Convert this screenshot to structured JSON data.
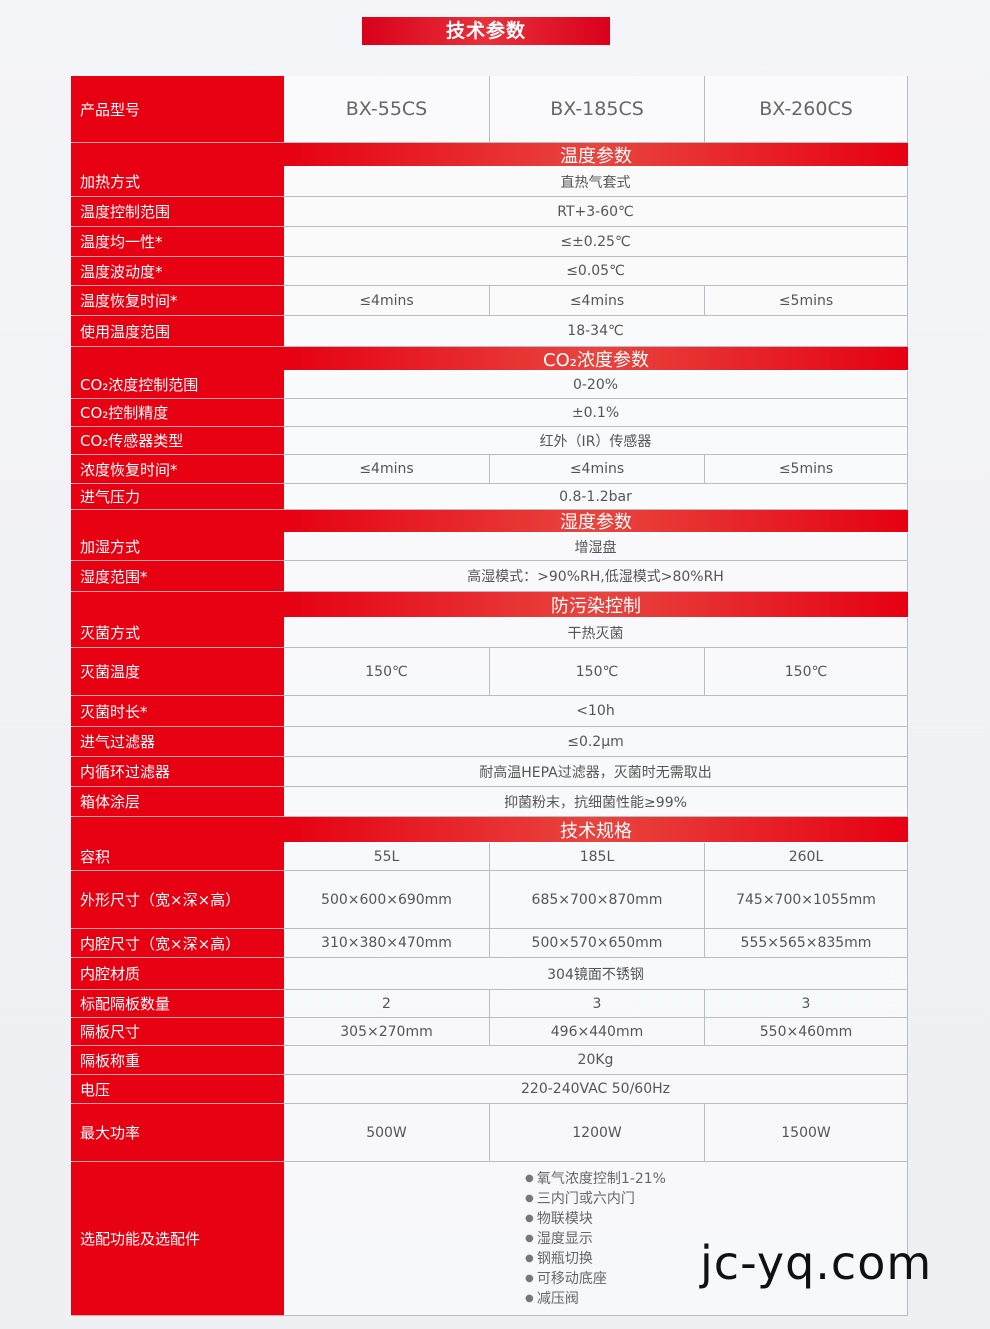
{
  "title": "技术参数",
  "header": {
    "label": "产品型号",
    "models": [
      "BX-55CS",
      "BX-185CS",
      "BX-260CS"
    ]
  },
  "rows": [
    {
      "section": "温度参数"
    },
    {
      "label": "加热方式",
      "values": [
        "直热气套式"
      ]
    },
    {
      "label": "温度控制范围",
      "values": [
        "RT+3-60℃"
      ]
    },
    {
      "label": "温度均一性*",
      "values": [
        "≤±0.25℃"
      ]
    },
    {
      "label": "温度波动度*",
      "values": [
        "≤0.05℃"
      ]
    },
    {
      "label": "温度恢复时间*",
      "values": [
        "≤4mins",
        "≤4mins",
        "≤5mins"
      ]
    },
    {
      "label": "使用温度范围",
      "values": [
        "18-34℃"
      ]
    },
    {
      "section": "CO₂浓度参数"
    },
    {
      "label": "CO₂浓度控制范围",
      "values": [
        "0-20%"
      ]
    },
    {
      "label": "CO₂控制精度",
      "values": [
        "±0.1%"
      ]
    },
    {
      "label": "CO₂传感器类型",
      "values": [
        "红外（IR）传感器"
      ]
    },
    {
      "label": "浓度恢复时间*",
      "values": [
        "≤4mins",
        "≤4mins",
        "≤5mins"
      ]
    },
    {
      "label": "进气压力",
      "values": [
        "0.8-1.2bar"
      ]
    },
    {
      "section": "湿度参数"
    },
    {
      "label": "加湿方式",
      "values": [
        "增湿盘"
      ]
    },
    {
      "label": "湿度范围*",
      "values": [
        "高湿模式：>90%RH,低湿模式>80%RH"
      ]
    },
    {
      "section": "防污染控制"
    },
    {
      "label": "灭菌方式",
      "values": [
        "干热灭菌"
      ]
    },
    {
      "label": "灭菌温度",
      "values": [
        "150℃",
        "150℃",
        "150℃"
      ]
    },
    {
      "label": "灭菌时长*",
      "values": [
        "<10h"
      ]
    },
    {
      "label": "进气过滤器",
      "values": [
        "≤0.2μm"
      ]
    },
    {
      "label": "内循环过滤器",
      "values": [
        "耐高温HEPA过滤器，灭菌时无需取出"
      ]
    },
    {
      "label": "箱体涂层",
      "values": [
        "抑菌粉末，抗细菌性能≥99%"
      ]
    },
    {
      "section": "技术规格"
    },
    {
      "label": "容积",
      "values": [
        "55L",
        "185L",
        "260L"
      ]
    },
    {
      "label": "外形尺寸（宽×深×高）",
      "values": [
        "500×600×690mm",
        "685×700×870mm",
        "745×700×1055mm"
      ]
    },
    {
      "label": "内腔尺寸（宽×深×高）",
      "values": [
        "310×380×470mm",
        "500×570×650mm",
        "555×565×835mm"
      ]
    },
    {
      "label": "内腔材质",
      "values": [
        "304镜面不锈钢"
      ]
    },
    {
      "label": "标配隔板数量",
      "values": [
        "2",
        "3",
        "3"
      ]
    },
    {
      "label": "隔板尺寸",
      "values": [
        "305×270mm",
        "496×440mm",
        "550×460mm"
      ]
    },
    {
      "label": "隔板称重",
      "values": [
        "20Kg"
      ]
    },
    {
      "label": "电压",
      "values": [
        "220-240VAC 50/60Hz"
      ]
    },
    {
      "label": "最大功率",
      "values": [
        "500W",
        "1200W",
        "1500W"
      ]
    },
    {
      "label": "选配功能及选配件",
      "options": [
        "氧气浓度控制1-21%",
        "三内门或六内门",
        "物联模块",
        "湿度显示",
        "钢瓶切换",
        "可移动底座",
        "减压阀"
      ]
    }
  ],
  "watermark": "jc-yq.com",
  "colors": {
    "brand_red": "#e60012"
  }
}
